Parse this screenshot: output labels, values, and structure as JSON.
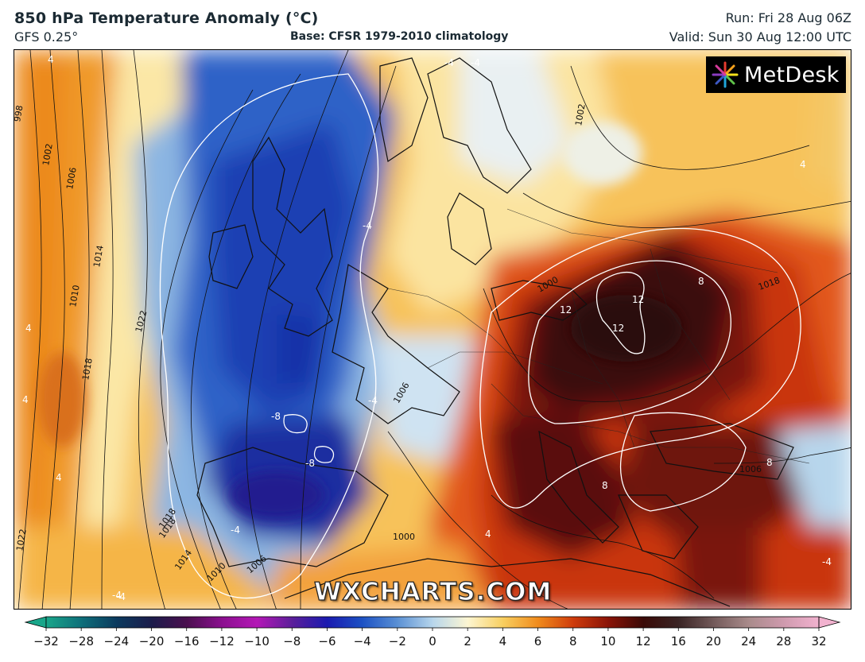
{
  "header": {
    "title": "850 hPa Temperature Anomaly (°C)",
    "model": "GFS 0.25°",
    "base": "Base: CFSR 1979-2010 climatology",
    "run": "Run: Fri 28 Aug 06Z",
    "valid": "Valid: Sun 30 Aug 12:00 UTC"
  },
  "logo": {
    "icon": "metdesk-burst-icon",
    "text": "MetDesk"
  },
  "watermark": "WXCHARTS.COM",
  "isobar_labels": [
    "998",
    "1002",
    "1006",
    "1010",
    "1014",
    "1018",
    "1022",
    "1018",
    "1022",
    "1018",
    "1014",
    "1010",
    "1006",
    "1006",
    "1002",
    "1000",
    "1000",
    "1006",
    "1018"
  ],
  "anomaly_labels": [
    "-4",
    "-4",
    "-4",
    "-4",
    "-4",
    "-4",
    "-8",
    "-8",
    "4",
    "4",
    "4",
    "4",
    "4",
    "4",
    "8",
    "8",
    "8",
    "12",
    "12",
    "12",
    "-4",
    "-4"
  ],
  "colorbar": {
    "ticks": [
      "-32",
      "-28",
      "-24",
      "-20",
      "-16",
      "-12",
      "-10",
      "-8",
      "-6",
      "-4",
      "-2",
      "0",
      "2",
      "4",
      "6",
      "8",
      "10",
      "12",
      "16",
      "20",
      "24",
      "28",
      "32"
    ],
    "colors": [
      "#19a68a",
      "#0e6f7a",
      "#0b3a5e",
      "#1b1c4b",
      "#4a0f4e",
      "#8b0f8f",
      "#b417b6",
      "#5b1f9a",
      "#1a1ab0",
      "#1d52c4",
      "#5a90d4",
      "#b7d6ec",
      "#fdf6d2",
      "#f8cf60",
      "#f08b1c",
      "#cf3c0c",
      "#8a1307",
      "#3a0a07",
      "#3a2424",
      "#735a5a",
      "#a98b8b",
      "#cf9aae",
      "#f2b2cf"
    ]
  }
}
